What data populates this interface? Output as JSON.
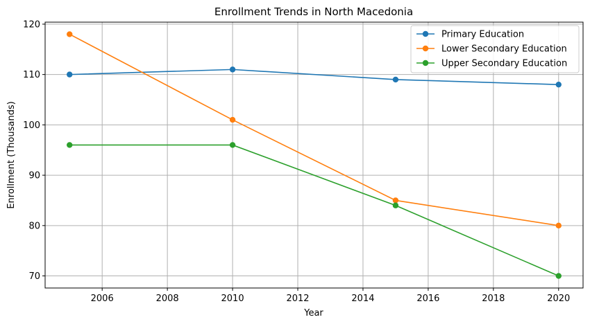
{
  "chart_data": {
    "type": "line",
    "title": "Enrollment Trends in North Macedonia",
    "xlabel": "Year",
    "ylabel": "Enrollment (Thousands)",
    "x": [
      2005,
      2010,
      2015,
      2020
    ],
    "xlim": [
      2004.25,
      2020.75
    ],
    "ylim": [
      67.6,
      120.4
    ],
    "xticks": [
      2006,
      2008,
      2010,
      2012,
      2014,
      2016,
      2018,
      2020
    ],
    "yticks": [
      70,
      80,
      90,
      100,
      110,
      120
    ],
    "grid": true,
    "legend_position": "top-right",
    "series": [
      {
        "name": "Primary Education",
        "color": "#1f77b4",
        "values": [
          110,
          111,
          109,
          108
        ]
      },
      {
        "name": "Lower Secondary Education",
        "color": "#ff7f0e",
        "values": [
          118,
          101,
          85,
          80
        ]
      },
      {
        "name": "Upper Secondary Education",
        "color": "#2ca02c",
        "values": [
          96,
          96,
          84,
          70
        ]
      }
    ]
  }
}
